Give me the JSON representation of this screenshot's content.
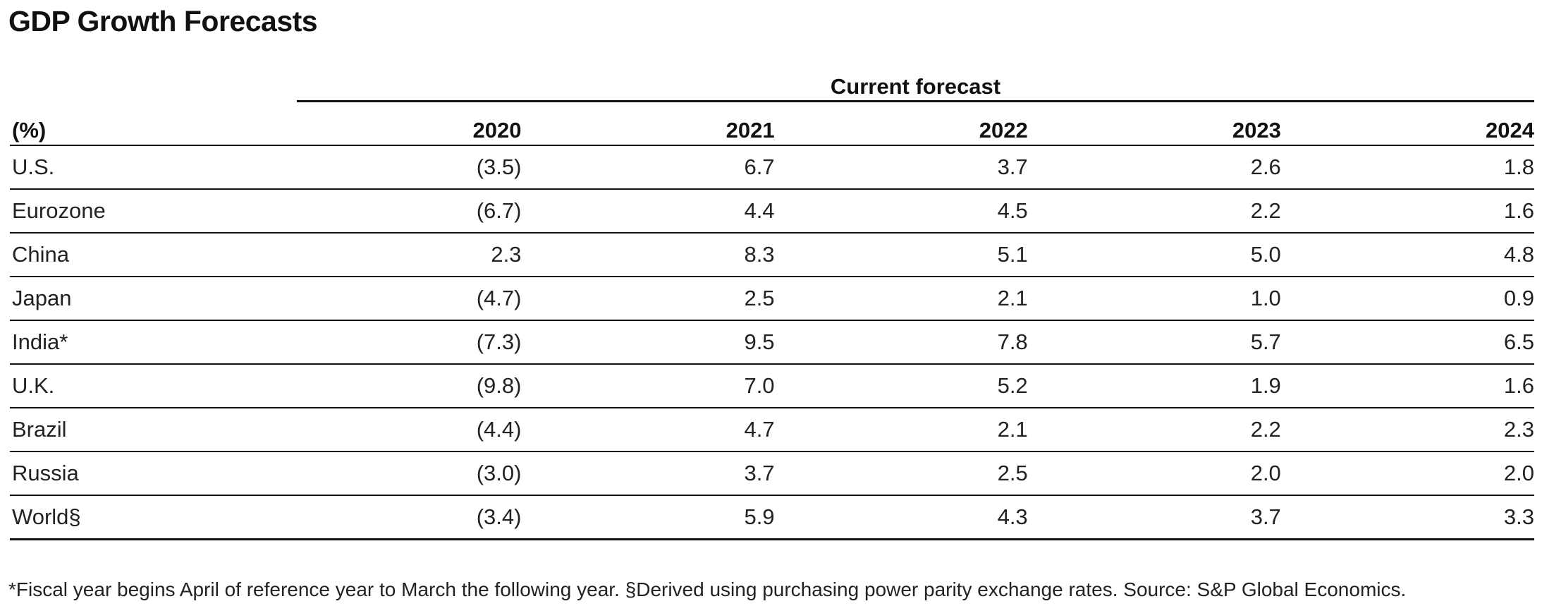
{
  "title": "GDP Growth Forecasts",
  "group_header": "Current forecast",
  "table": {
    "unit_label": "(%)",
    "columns": [
      "2020",
      "2021",
      "2022",
      "2023",
      "2024"
    ],
    "rows": [
      {
        "label": "U.S.",
        "values": [
          "(3.5)",
          "6.7",
          "3.7",
          "2.6",
          "1.8"
        ]
      },
      {
        "label": "Eurozone",
        "values": [
          "(6.7)",
          "4.4",
          "4.5",
          "2.2",
          "1.6"
        ]
      },
      {
        "label": "China",
        "values": [
          "2.3",
          "8.3",
          "5.1",
          "5.0",
          "4.8"
        ]
      },
      {
        "label": "Japan",
        "values": [
          "(4.7)",
          "2.5",
          "2.1",
          "1.0",
          "0.9"
        ]
      },
      {
        "label": "India*",
        "values": [
          "(7.3)",
          "9.5",
          "7.8",
          "5.7",
          "6.5"
        ]
      },
      {
        "label": "U.K.",
        "values": [
          "(9.8)",
          "7.0",
          "5.2",
          "1.9",
          "1.6"
        ]
      },
      {
        "label": "Brazil",
        "values": [
          "(4.4)",
          "4.7",
          "2.1",
          "2.2",
          "2.3"
        ]
      },
      {
        "label": "Russia",
        "values": [
          "(3.0)",
          "3.7",
          "2.5",
          "2.0",
          "2.0"
        ]
      },
      {
        "label": "World§",
        "values": [
          "(3.4)",
          "5.9",
          "4.3",
          "3.7",
          "3.3"
        ]
      }
    ]
  },
  "footnote": "*Fiscal year begins April of reference year to March the following year. §Derived using purchasing power parity exchange rates. Source: S&P Global Economics."
}
